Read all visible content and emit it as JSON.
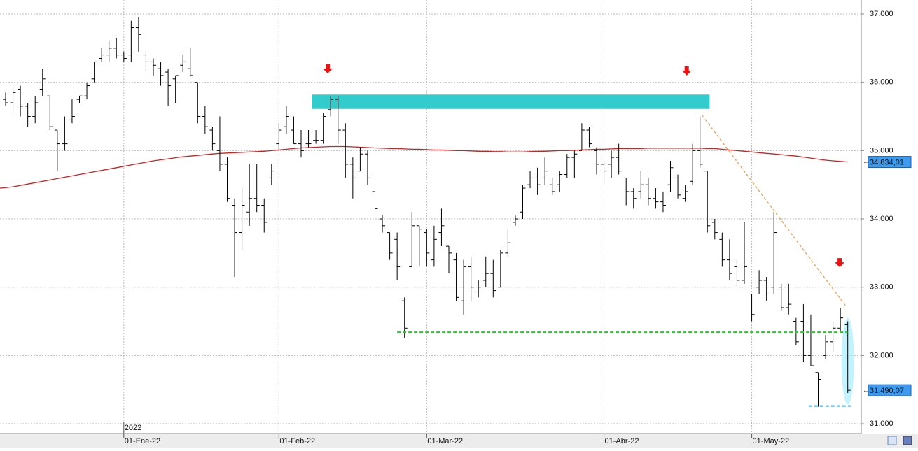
{
  "chart_data": {
    "type": "ohlc",
    "categories": [
      null,
      null,
      null,
      null,
      null,
      null,
      null,
      null,
      null,
      null,
      null,
      null,
      null,
      null,
      null,
      null,
      "01-Ene-22",
      null,
      null,
      null,
      null,
      null,
      null,
      null,
      null,
      null,
      null,
      null,
      null,
      null,
      null,
      null,
      null,
      null,
      null,
      null,
      null,
      "01-Feb-22",
      null,
      null,
      null,
      null,
      null,
      null,
      null,
      null,
      null,
      null,
      null,
      null,
      null,
      null,
      null,
      null,
      null,
      null,
      null,
      "01-Mar-22",
      null,
      null,
      null,
      null,
      null,
      null,
      null,
      null,
      null,
      null,
      null,
      null,
      null,
      null,
      null,
      null,
      null,
      null,
      null,
      null,
      null,
      null,
      null,
      "01-Abr-22",
      null,
      null,
      null,
      null,
      null,
      null,
      null,
      null,
      null,
      null,
      null,
      null,
      null,
      null,
      null,
      null,
      null,
      null,
      null,
      "01-May-22",
      null,
      null,
      null,
      null,
      null,
      null,
      null,
      null,
      null,
      null,
      null,
      null,
      null
    ],
    "year_label": "2022",
    "color": "#000000",
    "open": [
      35750,
      35700,
      35900,
      35650,
      35500,
      35900,
      35800,
      35300,
      35100,
      35450,
      35750,
      35800,
      36050,
      36350,
      36400,
      36500,
      36400,
      36400,
      36800,
      36400,
      36300,
      36200,
      36150,
      36050,
      36250,
      36200,
      36000,
      35500,
      35300,
      35000,
      34800,
      34200,
      33800,
      34100,
      34300,
      34200,
      34600,
      35100,
      35350,
      35300,
      35100,
      35100,
      35150,
      35150,
      35600,
      35750,
      35300,
      34800,
      34700,
      34950,
      34400,
      34000,
      33800,
      33700,
      32800,
      33300,
      33900,
      33800,
      33400,
      33800,
      33600,
      33400,
      32800,
      33300,
      32900,
      33100,
      33200,
      33000,
      33500,
      33950,
      34100,
      34500,
      34600,
      34600,
      34500,
      34500,
      34650,
      34900,
      35000,
      35300,
      35000,
      34800,
      34800,
      34900,
      34600,
      34400,
      34400,
      34500,
      34300,
      34250,
      34500,
      34600,
      34300,
      34550,
      35000,
      34700,
      33950,
      33700,
      33400,
      33300,
      33100,
      32900,
      33000,
      33100,
      33000,
      33000,
      32700,
      32500,
      32500,
      32000,
      31750,
      32000,
      32200,
      32400,
      32450
    ],
    "high": [
      35850,
      35950,
      35950,
      35700,
      35800,
      36200,
      35800,
      35300,
      35500,
      35750,
      35800,
      36000,
      36300,
      36500,
      36600,
      36650,
      36450,
      36900,
      36950,
      36450,
      36350,
      36300,
      36200,
      36100,
      36400,
      36500,
      36000,
      35650,
      35350,
      35500,
      34900,
      34300,
      34450,
      34800,
      34800,
      34300,
      34800,
      35400,
      35650,
      35500,
      35300,
      35300,
      35300,
      35550,
      35800,
      35800,
      35400,
      34900,
      35050,
      35000,
      34400,
      34050,
      33800,
      33800,
      32850,
      34100,
      33900,
      33850,
      33900,
      34150,
      33600,
      33500,
      33400,
      33450,
      33100,
      33450,
      33400,
      33550,
      33850,
      34050,
      34500,
      34700,
      34750,
      34900,
      34600,
      34700,
      34950,
      35000,
      35400,
      35350,
      35050,
      34850,
      35000,
      35100,
      34600,
      34450,
      34700,
      34600,
      34450,
      34400,
      34850,
      34650,
      34500,
      35100,
      35500,
      34700,
      34000,
      33800,
      33700,
      33400,
      33950,
      32900,
      33250,
      33150,
      34100,
      33050,
      33050,
      32550,
      32750,
      32600,
      31750,
      32300,
      32500,
      32700,
      32500
    ],
    "low": [
      35650,
      35550,
      35500,
      35350,
      35400,
      35800,
      35300,
      34700,
      35000,
      35400,
      35700,
      35750,
      36000,
      36300,
      36300,
      36350,
      36300,
      36300,
      36450,
      36150,
      36100,
      35950,
      35650,
      35700,
      36150,
      36100,
      35400,
      35250,
      35000,
      34700,
      34250,
      33150,
      33550,
      33900,
      34100,
      33800,
      34500,
      35000,
      35250,
      35100,
      34900,
      35050,
      35100,
      35100,
      35500,
      35100,
      34600,
      34300,
      34700,
      34500,
      33950,
      33800,
      33400,
      33100,
      32250,
      33300,
      33300,
      33300,
      33300,
      33600,
      33200,
      32800,
      32600,
      32800,
      32850,
      33000,
      32850,
      33000,
      33450,
      33900,
      34000,
      34450,
      34350,
      34500,
      34350,
      34400,
      34600,
      34600,
      35000,
      35050,
      34650,
      34500,
      34600,
      34650,
      34200,
      34150,
      34300,
      34200,
      34150,
      34100,
      34400,
      34300,
      34250,
      34500,
      34750,
      33800,
      33700,
      33300,
      33100,
      33000,
      33050,
      32500,
      32900,
      32800,
      32900,
      32650,
      32600,
      32150,
      31900,
      31850,
      31250,
      31950,
      32050,
      32350,
      31450
    ],
    "close": [
      35700,
      35850,
      35650,
      35500,
      35700,
      36050,
      35350,
      35100,
      35100,
      35500,
      35800,
      35950,
      36300,
      36400,
      36500,
      36400,
      36350,
      36800,
      36700,
      36300,
      36250,
      36100,
      35950,
      36100,
      36300,
      36100,
      35500,
      35350,
      35100,
      34800,
      34300,
      33800,
      34200,
      34300,
      34200,
      33950,
      34700,
      35300,
      35500,
      35100,
      35000,
      35100,
      35150,
      35500,
      35750,
      35300,
      34800,
      34600,
      34950,
      34600,
      34150,
      33900,
      33500,
      33300,
      32400,
      33900,
      33850,
      33500,
      33700,
      33900,
      33500,
      32850,
      33300,
      33000,
      33000,
      33200,
      32950,
      33500,
      33650,
      34000,
      34450,
      34600,
      34500,
      34700,
      34400,
      34650,
      34900,
      34950,
      35300,
      35100,
      34800,
      34700,
      34900,
      34700,
      34400,
      34300,
      34500,
      34300,
      34250,
      34200,
      34750,
      34350,
      34400,
      35000,
      34800,
      33900,
      33800,
      33400,
      33200,
      33100,
      33300,
      32600,
      33100,
      32900,
      33800,
      32700,
      32750,
      32200,
      32000,
      31850,
      31650,
      32200,
      32400,
      32550,
      31490.07
    ],
    "last_label": "31.490,07",
    "moving_average": {
      "color": "#cc2222",
      "last_label": "34.834,01",
      "values": [
        34450,
        34470,
        34490,
        34510,
        34530,
        34550,
        34570,
        34590,
        34610,
        34630,
        34650,
        34670,
        34690,
        34710,
        34730,
        34750,
        34770,
        34790,
        34810,
        34830,
        34850,
        34865,
        34880,
        34895,
        34910,
        34920,
        34930,
        34940,
        34950,
        34960,
        34965,
        34970,
        34975,
        34980,
        34985,
        34990,
        35000,
        35010,
        35020,
        35030,
        35040,
        35045,
        35050,
        35055,
        35060,
        35060,
        35060,
        35055,
        35050,
        35045,
        35040,
        35035,
        35030,
        35030,
        35025,
        35020,
        35020,
        35015,
        35010,
        35010,
        35005,
        35000,
        35000,
        34995,
        34990,
        34990,
        34985,
        34985,
        34980,
        34980,
        34980,
        34985,
        34990,
        34990,
        34995,
        35000,
        35000,
        35005,
        35010,
        35015,
        35020,
        35020,
        35025,
        35030,
        35030,
        35030,
        35030,
        35035,
        35035,
        35035,
        35035,
        35035,
        35035,
        35035,
        35035,
        35030,
        35030,
        35020,
        35010,
        35000,
        34990,
        34980,
        34970,
        34960,
        34950,
        34940,
        34930,
        34920,
        34905,
        34890,
        34875,
        34860,
        34850,
        34842,
        34834.01
      ]
    },
    "ylim": [
      30857,
      37205
    ],
    "yticks": [
      {
        "value": 31000,
        "label": "31.000"
      },
      {
        "value": 32000,
        "label": "32.000"
      },
      {
        "value": 33000,
        "label": "33.000"
      },
      {
        "value": 34000,
        "label": "34.000"
      },
      {
        "value": 35000,
        "label": "35.000"
      },
      {
        "value": 36000,
        "label": "36.000"
      },
      {
        "value": 37000,
        "label": "37.000"
      }
    ],
    "grid": true,
    "annotations": {
      "zone": {
        "x0": 41.5,
        "x1": 95.3,
        "y0": 35610,
        "y1": 35820,
        "color": "#33cccc"
      },
      "support": {
        "x0": 53,
        "x1": 114,
        "y": 32340,
        "color": "#22cc22"
      },
      "low_line": {
        "x0": 108.7,
        "x1": 114.7,
        "y": 31260,
        "color": "#33aadd"
      },
      "trend": {
        "x0": 94.3,
        "y0": 35515,
        "x1": 113.7,
        "y1": 32730,
        "color": "#f0a050"
      },
      "ellipse": {
        "x": 114,
        "y0": 32550,
        "y1": 31280,
        "color": "#aaeeff"
      },
      "arrows": [
        {
          "x": 43.6,
          "y": 36130
        },
        {
          "x": 92.2,
          "y": 36100
        },
        {
          "x": 112.9,
          "y": 33293
        }
      ],
      "arrow_color": "#ee1111"
    }
  }
}
